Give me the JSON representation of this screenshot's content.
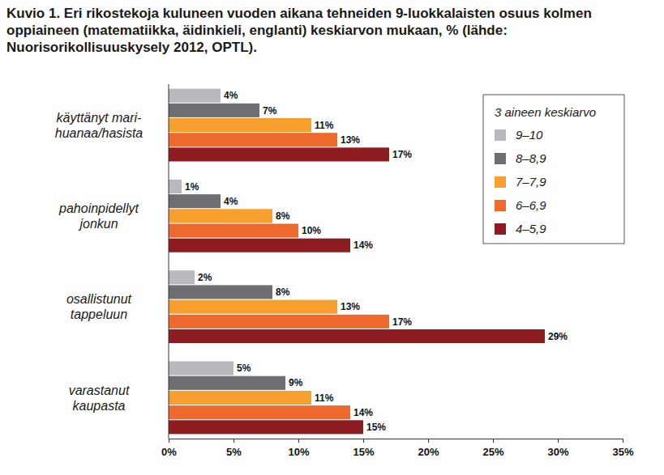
{
  "chart_data": {
    "type": "bar",
    "orientation": "horizontal",
    "title": "Kuvio 1. Eri rikostekoja kuluneen vuoden aikana tehneiden 9-luokkalaisten osuus kolmen oppiaineen (matematiikka, äidinkieli, englanti) keskiarvon mukaan, % (lähde: Nuorisorikollisuuskysely 2012, OPTL).",
    "categories": [
      "käyttänyt mari-\nhuanaa/hasista",
      "pahoinpidellyt\njonkun",
      "osallistunut\ntappeluun",
      "varastanut\nkaupasta"
    ],
    "legend_title": "3 aineen keskiarvo",
    "legend": "upper right",
    "data_labels": true,
    "grid": false,
    "series": [
      {
        "name": "9–10",
        "color": "#b7b9bc",
        "values": [
          4,
          1,
          2,
          5
        ],
        "value_labels": [
          "4%",
          "1%",
          "2%",
          "5%"
        ]
      },
      {
        "name": "8–8,9",
        "color": "#6d6e71",
        "values": [
          7,
          4,
          8,
          9
        ],
        "value_labels": [
          "7%",
          "4%",
          "8%",
          "9%"
        ]
      },
      {
        "name": "7–7,9",
        "color": "#f7a030",
        "values": [
          11,
          8,
          13,
          11
        ],
        "value_labels": [
          "11%",
          "8%",
          "13%",
          "11%"
        ]
      },
      {
        "name": "6–6,9",
        "color": "#ee6a2c",
        "values": [
          13,
          10,
          17,
          14
        ],
        "value_labels": [
          "13%",
          "10%",
          "17%",
          "14%"
        ]
      },
      {
        "name": "4–5,9",
        "color": "#8c1c1f",
        "values": [
          17,
          14,
          29,
          15
        ],
        "value_labels": [
          "17%",
          "14%",
          "29%",
          "15%"
        ]
      }
    ],
    "xlim": [
      0,
      35
    ],
    "xticks": [
      {
        "value": 0,
        "label": "0%"
      },
      {
        "value": 5,
        "label": "5%"
      },
      {
        "value": 10,
        "label": "10%"
      },
      {
        "value": 15,
        "label": "15%"
      },
      {
        "value": 20,
        "label": "20%"
      },
      {
        "value": 25,
        "label": "25%"
      },
      {
        "value": 30,
        "label": "30%"
      },
      {
        "value": 35,
        "label": "35%"
      }
    ]
  }
}
